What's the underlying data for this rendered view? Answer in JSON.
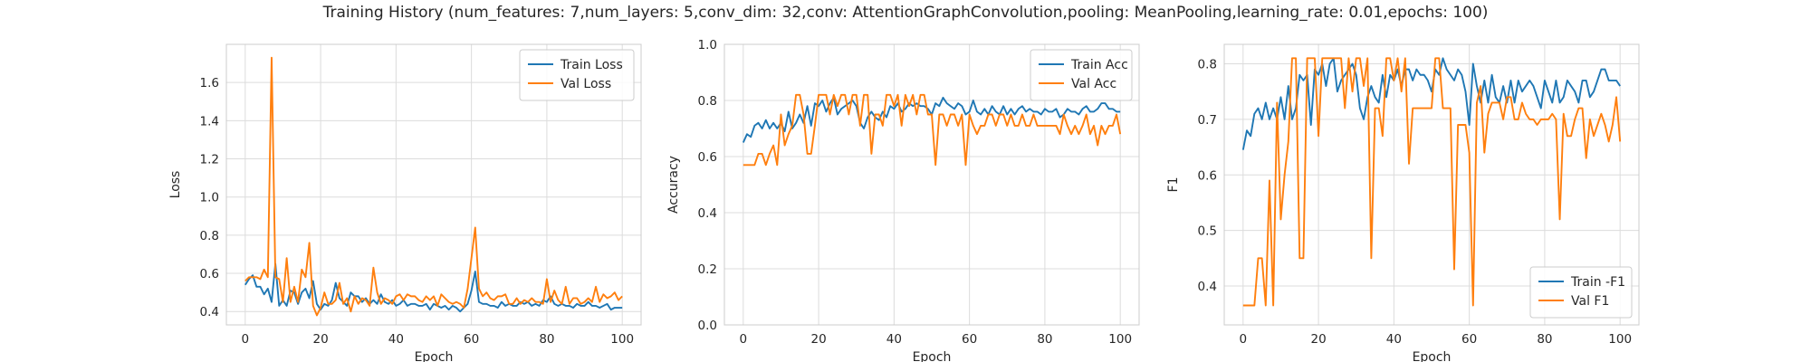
{
  "figure": {
    "title": "Training History (num_features: 7,num_layers: 5,conv_dim: 32,conv: AttentionGraphConvolution,pooling: MeanPooling,learning_rate: 0.01,epochs: 100)"
  },
  "chart_data": [
    {
      "type": "line",
      "title": "",
      "xlabel": "Epoch",
      "ylabel": "Loss",
      "xlim": [
        -5,
        105
      ],
      "ylim": [
        0.33,
        1.8
      ],
      "xticks": [
        0,
        20,
        40,
        60,
        80,
        100
      ],
      "yticks": [
        0.4,
        0.6,
        0.8,
        1.0,
        1.2,
        1.4,
        1.6
      ],
      "ytick_decimals": 1,
      "grid": true,
      "legend_position": "top-right",
      "series": [
        {
          "name": "Train Loss",
          "color": "#1f77b4",
          "values": [
            0.54,
            0.57,
            0.59,
            0.53,
            0.53,
            0.49,
            0.52,
            0.45,
            0.65,
            0.43,
            0.46,
            0.43,
            0.51,
            0.5,
            0.44,
            0.5,
            0.52,
            0.47,
            0.56,
            0.44,
            0.41,
            0.44,
            0.43,
            0.46,
            0.55,
            0.47,
            0.45,
            0.43,
            0.5,
            0.48,
            0.48,
            0.45,
            0.47,
            0.44,
            0.46,
            0.44,
            0.49,
            0.45,
            0.44,
            0.46,
            0.43,
            0.44,
            0.46,
            0.43,
            0.44,
            0.44,
            0.43,
            0.43,
            0.44,
            0.41,
            0.44,
            0.43,
            0.42,
            0.43,
            0.41,
            0.43,
            0.42,
            0.4,
            0.42,
            0.44,
            0.51,
            0.61,
            0.45,
            0.44,
            0.44,
            0.43,
            0.43,
            0.42,
            0.45,
            0.43,
            0.44,
            0.43,
            0.43,
            0.45,
            0.44,
            0.45,
            0.43,
            0.44,
            0.43,
            0.46,
            0.45,
            0.48,
            0.44,
            0.43,
            0.44,
            0.43,
            0.43,
            0.42,
            0.44,
            0.43,
            0.43,
            0.45,
            0.43,
            0.43,
            0.42,
            0.43,
            0.44,
            0.41,
            0.42,
            0.42,
            0.42
          ]
        },
        {
          "name": "Val Loss",
          "color": "#ff7f0e",
          "values": [
            0.56,
            0.58,
            0.58,
            0.58,
            0.57,
            0.62,
            0.58,
            1.73,
            0.58,
            0.57,
            0.45,
            0.68,
            0.45,
            0.53,
            0.45,
            0.62,
            0.58,
            0.76,
            0.43,
            0.38,
            0.42,
            0.5,
            0.44,
            0.44,
            0.46,
            0.55,
            0.44,
            0.47,
            0.4,
            0.48,
            0.44,
            0.47,
            0.46,
            0.43,
            0.63,
            0.5,
            0.44,
            0.47,
            0.46,
            0.44,
            0.48,
            0.49,
            0.46,
            0.49,
            0.48,
            0.48,
            0.46,
            0.45,
            0.48,
            0.46,
            0.48,
            0.43,
            0.49,
            0.47,
            0.45,
            0.44,
            0.45,
            0.44,
            0.42,
            0.52,
            0.68,
            0.84,
            0.52,
            0.48,
            0.5,
            0.47,
            0.46,
            0.48,
            0.48,
            0.49,
            0.44,
            0.44,
            0.47,
            0.44,
            0.46,
            0.45,
            0.47,
            0.45,
            0.45,
            0.44,
            0.57,
            0.45,
            0.51,
            0.46,
            0.44,
            0.53,
            0.44,
            0.47,
            0.47,
            0.44,
            0.45,
            0.47,
            0.45,
            0.53,
            0.45,
            0.49,
            0.47,
            0.48,
            0.5,
            0.46,
            0.48
          ]
        }
      ]
    },
    {
      "type": "line",
      "title": "",
      "xlabel": "Epoch",
      "ylabel": "Accuracy",
      "xlim": [
        -5,
        105
      ],
      "ylim": [
        0.0,
        1.0
      ],
      "xticks": [
        0,
        20,
        40,
        60,
        80,
        100
      ],
      "yticks": [
        0.0,
        0.2,
        0.4,
        0.6,
        0.8,
        1.0
      ],
      "ytick_decimals": 1,
      "grid": true,
      "legend_position": "top-right",
      "series": [
        {
          "name": "Train Acc",
          "color": "#1f77b4",
          "values": [
            0.65,
            0.68,
            0.67,
            0.71,
            0.72,
            0.7,
            0.73,
            0.7,
            0.72,
            0.7,
            0.72,
            0.69,
            0.76,
            0.7,
            0.72,
            0.75,
            0.72,
            0.78,
            0.71,
            0.79,
            0.78,
            0.8,
            0.76,
            0.79,
            0.81,
            0.75,
            0.77,
            0.78,
            0.79,
            0.8,
            0.78,
            0.72,
            0.7,
            0.74,
            0.76,
            0.74,
            0.73,
            0.76,
            0.74,
            0.78,
            0.77,
            0.79,
            0.76,
            0.77,
            0.79,
            0.78,
            0.79,
            0.78,
            0.78,
            0.77,
            0.75,
            0.79,
            0.78,
            0.81,
            0.79,
            0.78,
            0.77,
            0.79,
            0.78,
            0.75,
            0.76,
            0.8,
            0.76,
            0.75,
            0.77,
            0.75,
            0.78,
            0.76,
            0.75,
            0.78,
            0.75,
            0.77,
            0.75,
            0.77,
            0.78,
            0.76,
            0.77,
            0.76,
            0.76,
            0.75,
            0.77,
            0.76,
            0.76,
            0.77,
            0.74,
            0.75,
            0.77,
            0.76,
            0.76,
            0.75,
            0.77,
            0.78,
            0.76,
            0.76,
            0.77,
            0.79,
            0.79,
            0.77,
            0.77,
            0.76,
            0.76
          ]
        },
        {
          "name": "Val Acc",
          "color": "#ff7f0e",
          "values": [
            0.57,
            0.57,
            0.57,
            0.57,
            0.61,
            0.61,
            0.57,
            0.61,
            0.64,
            0.57,
            0.75,
            0.64,
            0.68,
            0.71,
            0.82,
            0.82,
            0.75,
            0.61,
            0.61,
            0.71,
            0.82,
            0.82,
            0.82,
            0.75,
            0.82,
            0.78,
            0.82,
            0.82,
            0.75,
            0.82,
            0.82,
            0.71,
            0.82,
            0.82,
            0.61,
            0.75,
            0.75,
            0.71,
            0.82,
            0.82,
            0.78,
            0.82,
            0.71,
            0.82,
            0.78,
            0.82,
            0.75,
            0.82,
            0.82,
            0.75,
            0.75,
            0.57,
            0.75,
            0.75,
            0.71,
            0.75,
            0.75,
            0.71,
            0.75,
            0.57,
            0.75,
            0.71,
            0.68,
            0.71,
            0.71,
            0.75,
            0.75,
            0.71,
            0.75,
            0.75,
            0.71,
            0.75,
            0.71,
            0.71,
            0.75,
            0.71,
            0.71,
            0.75,
            0.71,
            0.71,
            0.71,
            0.71,
            0.71,
            0.71,
            0.68,
            0.75,
            0.71,
            0.68,
            0.71,
            0.68,
            0.71,
            0.75,
            0.68,
            0.71,
            0.64,
            0.71,
            0.68,
            0.71,
            0.71,
            0.75,
            0.68
          ]
        }
      ]
    },
    {
      "type": "line",
      "title": "",
      "xlabel": "Epoch",
      "ylabel": "F1",
      "xlim": [
        -5,
        105
      ],
      "ylim": [
        0.33,
        0.835
      ],
      "xticks": [
        0,
        20,
        40,
        60,
        80,
        100
      ],
      "yticks": [
        0.4,
        0.5,
        0.6,
        0.7,
        0.8
      ],
      "ytick_decimals": 1,
      "grid": true,
      "legend_position": "bottom-right",
      "series": [
        {
          "name": "Train -F1",
          "color": "#1f77b4",
          "values": [
            0.645,
            0.68,
            0.67,
            0.71,
            0.72,
            0.7,
            0.73,
            0.7,
            0.72,
            0.7,
            0.74,
            0.7,
            0.76,
            0.7,
            0.72,
            0.78,
            0.77,
            0.78,
            0.69,
            0.79,
            0.78,
            0.8,
            0.76,
            0.8,
            0.81,
            0.75,
            0.77,
            0.78,
            0.79,
            0.8,
            0.78,
            0.72,
            0.7,
            0.74,
            0.76,
            0.74,
            0.73,
            0.78,
            0.74,
            0.78,
            0.77,
            0.79,
            0.76,
            0.79,
            0.79,
            0.77,
            0.79,
            0.78,
            0.78,
            0.77,
            0.75,
            0.79,
            0.78,
            0.81,
            0.79,
            0.78,
            0.77,
            0.79,
            0.78,
            0.75,
            0.69,
            0.8,
            0.76,
            0.73,
            0.77,
            0.73,
            0.78,
            0.74,
            0.73,
            0.76,
            0.73,
            0.77,
            0.73,
            0.77,
            0.75,
            0.76,
            0.77,
            0.76,
            0.74,
            0.72,
            0.77,
            0.75,
            0.73,
            0.77,
            0.73,
            0.74,
            0.77,
            0.76,
            0.75,
            0.73,
            0.77,
            0.77,
            0.74,
            0.75,
            0.77,
            0.79,
            0.79,
            0.77,
            0.77,
            0.77,
            0.76
          ]
        },
        {
          "name": "Val F1",
          "color": "#ff7f0e",
          "values": [
            0.365,
            0.365,
            0.365,
            0.365,
            0.45,
            0.45,
            0.365,
            0.59,
            0.365,
            0.73,
            0.52,
            0.6,
            0.66,
            0.81,
            0.81,
            0.45,
            0.45,
            0.81,
            0.81,
            0.81,
            0.67,
            0.81,
            0.81,
            0.81,
            0.81,
            0.81,
            0.81,
            0.72,
            0.81,
            0.75,
            0.81,
            0.81,
            0.76,
            0.81,
            0.45,
            0.72,
            0.72,
            0.67,
            0.81,
            0.81,
            0.77,
            0.81,
            0.75,
            0.81,
            0.62,
            0.72,
            0.72,
            0.72,
            0.72,
            0.72,
            0.72,
            0.81,
            0.81,
            0.72,
            0.72,
            0.72,
            0.43,
            0.69,
            0.69,
            0.69,
            0.64,
            0.365,
            0.73,
            0.76,
            0.64,
            0.71,
            0.73,
            0.73,
            0.73,
            0.7,
            0.74,
            0.74,
            0.7,
            0.7,
            0.73,
            0.71,
            0.7,
            0.7,
            0.69,
            0.7,
            0.7,
            0.7,
            0.71,
            0.7,
            0.52,
            0.71,
            0.67,
            0.67,
            0.7,
            0.72,
            0.72,
            0.63,
            0.7,
            0.67,
            0.69,
            0.71,
            0.69,
            0.66,
            0.69,
            0.74,
            0.66
          ]
        }
      ]
    }
  ]
}
